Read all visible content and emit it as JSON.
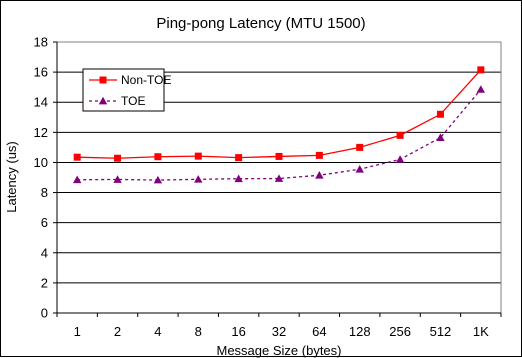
{
  "chart_data": {
    "type": "line",
    "title": "Ping-pong Latency (MTU 1500)",
    "xlabel": "Message Size (bytes)",
    "ylabel": "Latency (us)",
    "categories": [
      "1",
      "2",
      "4",
      "8",
      "16",
      "32",
      "64",
      "128",
      "256",
      "512",
      "1K"
    ],
    "ylim": [
      0,
      18
    ],
    "yticks": [
      0,
      2,
      4,
      6,
      8,
      10,
      12,
      14,
      16,
      18
    ],
    "grid": true,
    "legend_position": "upper-left",
    "series": [
      {
        "name": "Non-TOE",
        "color": "#ff0000",
        "marker": "square",
        "line_style": "solid",
        "values": [
          10.35,
          10.28,
          10.38,
          10.42,
          10.32,
          10.4,
          10.47,
          11.0,
          11.8,
          13.2,
          16.15
        ]
      },
      {
        "name": "TOE",
        "color": "#800080",
        "marker": "triangle",
        "line_style": "dashed",
        "values": [
          8.85,
          8.87,
          8.83,
          8.88,
          8.92,
          8.93,
          9.15,
          9.55,
          10.2,
          11.65,
          14.85
        ]
      }
    ]
  }
}
